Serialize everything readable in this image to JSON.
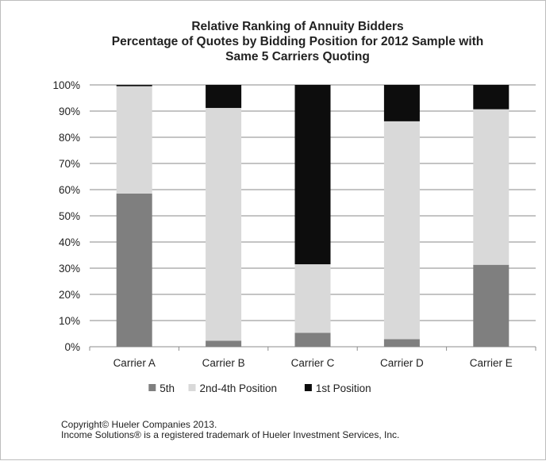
{
  "chart_data": {
    "type": "bar",
    "stacked": true,
    "title_lines": [
      "Relative Ranking of Annuity Bidders",
      "Percentage of Quotes by Bidding Position for 2012 Sample with",
      "Same 5 Carriers Quoting"
    ],
    "categories": [
      "Carrier A",
      "Carrier B",
      "Carrier C",
      "Carrier D",
      "Carrier E"
    ],
    "series": [
      {
        "name": "5th",
        "color": "#7f7f7f",
        "values": [
          58.5,
          2.3,
          5.3,
          2.9,
          31.3
        ]
      },
      {
        "name": "2nd-4th Position",
        "color": "#d9d9d9",
        "values": [
          41.0,
          88.9,
          26.2,
          83.2,
          59.4
        ]
      },
      {
        "name": "1st Position",
        "color": "#0d0d0d",
        "values": [
          0.5,
          8.8,
          68.5,
          13.9,
          9.3
        ]
      }
    ],
    "ylim": [
      0,
      100
    ],
    "yticks": [
      "0%",
      "10%",
      "20%",
      "30%",
      "40%",
      "50%",
      "60%",
      "70%",
      "80%",
      "90%",
      "100%"
    ],
    "grid": true,
    "legend_position": "bottom"
  },
  "footer": {
    "copyright": "Copyright© Hueler Companies 2013.",
    "trademark": "Income Solutions® is a registered trademark of Hueler Investment Services, Inc."
  }
}
